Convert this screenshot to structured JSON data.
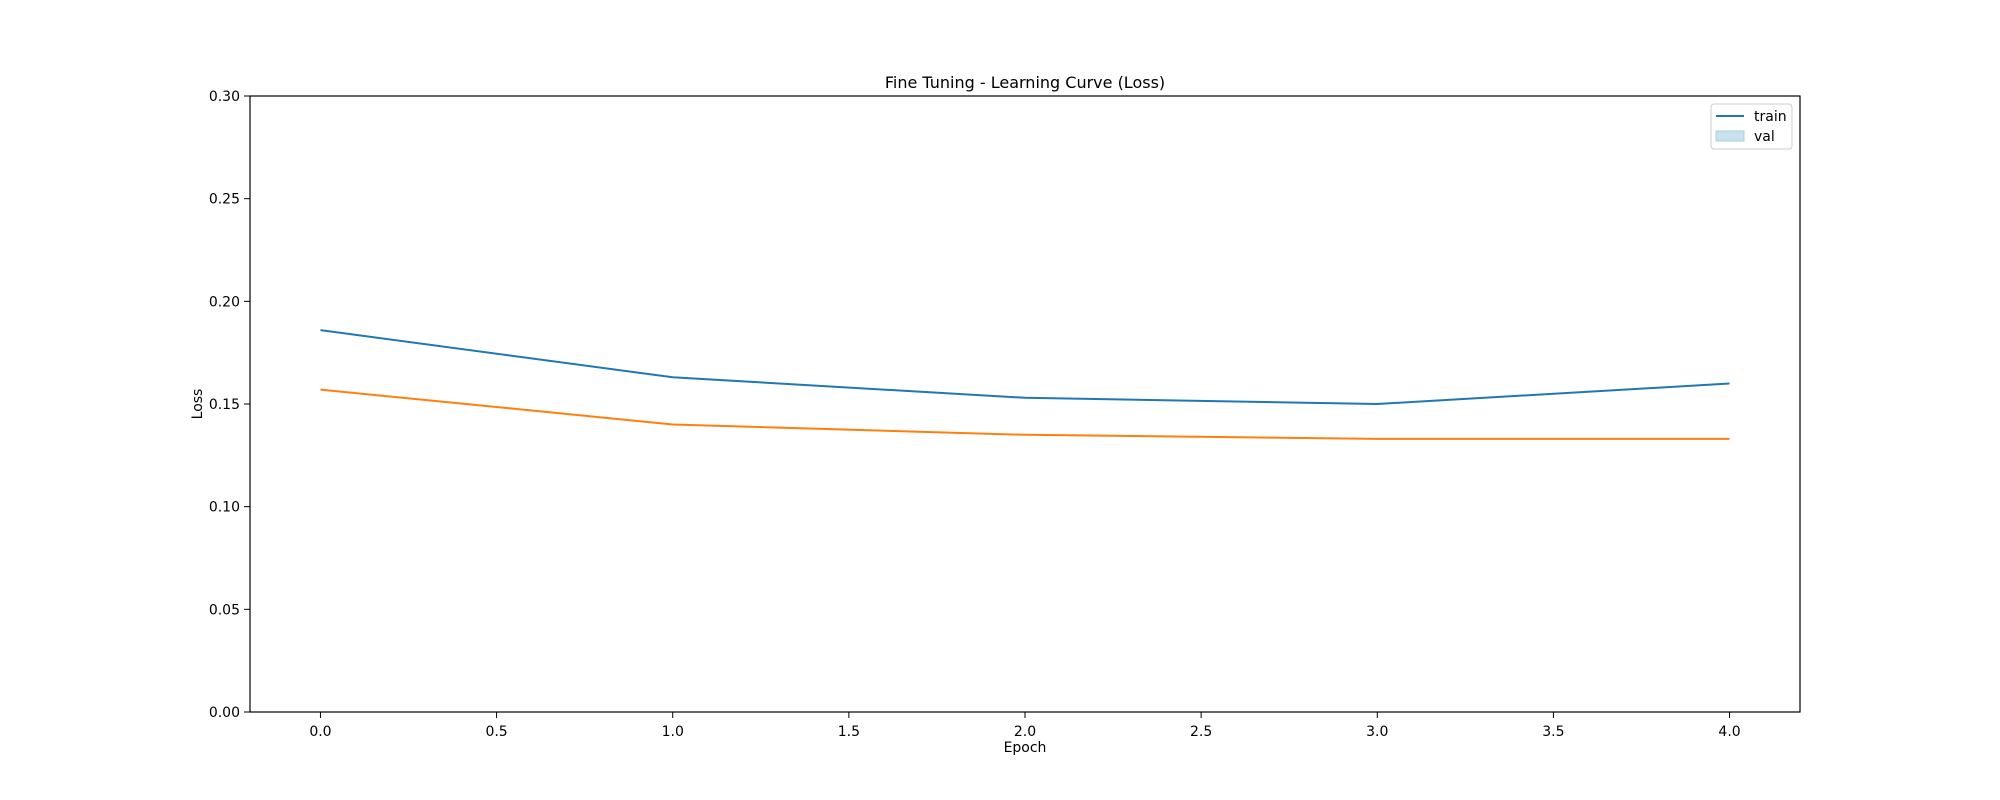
{
  "chart_data": {
    "type": "line",
    "title": "Fine Tuning - Learning Curve (Loss)",
    "xlabel": "Epoch",
    "ylabel": "Loss",
    "xlim": [
      -0.2,
      4.2
    ],
    "ylim": [
      0,
      0.3
    ],
    "x_ticks": [
      0,
      0.5,
      1,
      1.5,
      2,
      2.5,
      3,
      3.5,
      4
    ],
    "x_tick_labels": [
      "0.0",
      "0.5",
      "1.0",
      "1.5",
      "2.0",
      "2.5",
      "3.0",
      "3.5",
      "4.0"
    ],
    "y_ticks": [
      0,
      0.05,
      0.1,
      0.15,
      0.2,
      0.25,
      0.3
    ],
    "y_tick_labels": [
      "0.00",
      "0.05",
      "0.10",
      "0.15",
      "0.20",
      "0.25",
      "0.30"
    ],
    "grid": false,
    "legend": {
      "position": "top-right",
      "entries": [
        {
          "label": "train",
          "marker": "line",
          "color": "#1f77b4"
        },
        {
          "label": "val",
          "marker": "patch",
          "color": "#a6cfe3"
        }
      ]
    },
    "x": [
      0,
      1,
      2,
      3,
      4
    ],
    "series": [
      {
        "name": "train",
        "color": "#1f77b4",
        "values": [
          0.186,
          0.163,
          0.153,
          0.15,
          0.16
        ]
      },
      {
        "name": "val",
        "color": "#ff7f0e",
        "values": [
          0.157,
          0.14,
          0.135,
          0.133,
          0.133
        ]
      }
    ]
  }
}
